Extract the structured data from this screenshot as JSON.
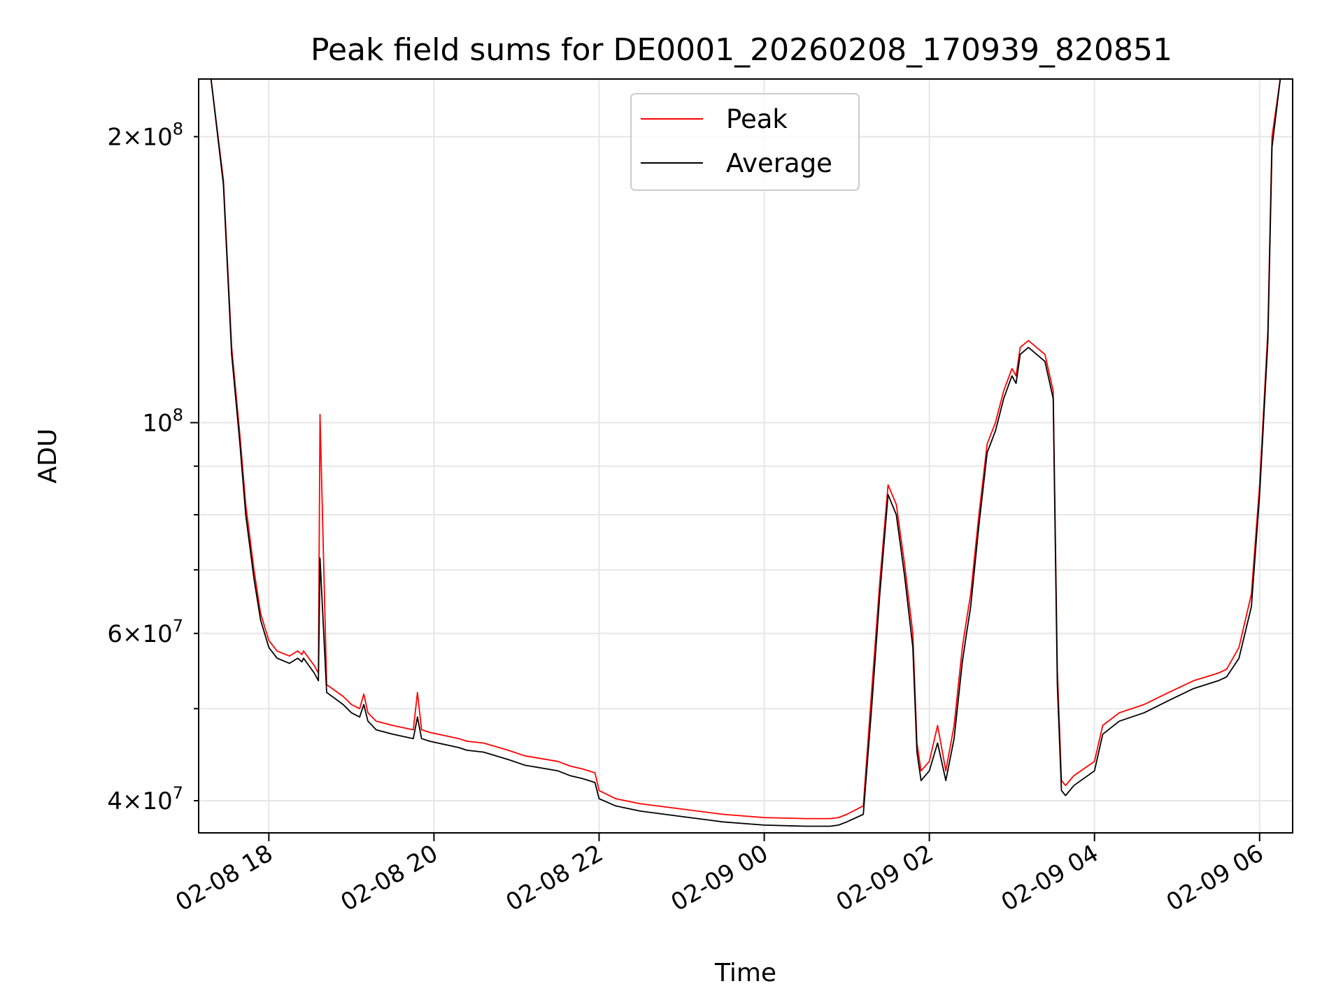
{
  "chart_data": {
    "type": "line",
    "title": "Peak field sums for DE0001_20260208_170939_820851",
    "xlabel": "Time",
    "ylabel": "ADU",
    "yscale": "log",
    "x_unit": "hours since 2026-02-08 00:00",
    "xlim": [
      17.15,
      30.4
    ],
    "ylim": [
      37000000,
      230000000
    ],
    "grid": true,
    "legend": {
      "position": "top-center",
      "entries": [
        "Peak",
        "Average"
      ]
    },
    "x_ticks": [
      {
        "value": 18,
        "label": "02-08 18"
      },
      {
        "value": 20,
        "label": "02-08 20"
      },
      {
        "value": 22,
        "label": "02-08 22"
      },
      {
        "value": 24,
        "label": "02-09 00"
      },
      {
        "value": 26,
        "label": "02-09 02"
      },
      {
        "value": 28,
        "label": "02-09 04"
      },
      {
        "value": 30,
        "label": "02-09 06"
      }
    ],
    "y_major_ticks": [
      {
        "value": 100000000,
        "base": "10",
        "exp": "8",
        "mult": ""
      }
    ],
    "y_minor_labeled_ticks": [
      {
        "value": 40000000,
        "base": "10",
        "exp": "7",
        "mult": "4"
      },
      {
        "value": 60000000,
        "base": "10",
        "exp": "7",
        "mult": "6"
      },
      {
        "value": 200000000,
        "base": "10",
        "exp": "8",
        "mult": "2"
      }
    ],
    "y_minor_unlabeled_ticks": [
      50000000,
      70000000,
      80000000,
      90000000
    ],
    "series": [
      {
        "name": "Peak",
        "color": "#ff0000",
        "x": [
          17.15,
          17.3,
          17.45,
          17.55,
          17.65,
          17.72,
          17.82,
          17.9,
          18.0,
          18.1,
          18.25,
          18.35,
          18.4,
          18.42,
          18.55,
          18.6,
          18.62,
          18.7,
          18.9,
          19.0,
          19.1,
          19.15,
          19.2,
          19.25,
          19.3,
          19.5,
          19.75,
          19.8,
          19.85,
          19.95,
          20.15,
          20.3,
          20.4,
          20.6,
          20.9,
          21.1,
          21.5,
          21.65,
          21.8,
          21.95,
          22.0,
          22.2,
          22.5,
          23.0,
          23.5,
          24.0,
          24.5,
          24.8,
          24.9,
          25.0,
          25.2,
          25.3,
          25.4,
          25.5,
          25.6,
          25.7,
          25.8,
          25.85,
          25.9,
          26.0,
          26.1,
          26.2,
          26.3,
          26.4,
          26.45,
          26.5,
          26.6,
          26.7,
          26.8,
          26.9,
          27.0,
          27.05,
          27.1,
          27.2,
          27.4,
          27.5,
          27.55,
          27.6,
          27.65,
          27.75,
          28.0,
          28.1,
          28.3,
          28.6,
          28.9,
          29.2,
          29.5,
          29.6,
          29.75,
          29.9,
          30.0,
          30.1,
          30.15,
          30.25,
          30.4
        ],
        "y": [
          230000000,
          230000000,
          180000000,
          120000000,
          97000000,
          82000000,
          70000000,
          63000000,
          59000000,
          57500000,
          56800000,
          57500000,
          57000000,
          57500000,
          55500000,
          54500000,
          102000000,
          53000000,
          51500000,
          50500000,
          50000000,
          51800000,
          49500000,
          49000000,
          48500000,
          48000000,
          47500000,
          52000000,
          47500000,
          47200000,
          46800000,
          46500000,
          46200000,
          46000000,
          45200000,
          44600000,
          44000000,
          43500000,
          43200000,
          42800000,
          41000000,
          40200000,
          39700000,
          39200000,
          38700000,
          38400000,
          38300000,
          38300000,
          38400000,
          38700000,
          39500000,
          52000000,
          68000000,
          86000000,
          82000000,
          71000000,
          60000000,
          46000000,
          43000000,
          44000000,
          48000000,
          43000000,
          48000000,
          58000000,
          62000000,
          66000000,
          80000000,
          95000000,
          100000000,
          108000000,
          114000000,
          112000000,
          120000000,
          122000000,
          118000000,
          108000000,
          55000000,
          42000000,
          41500000,
          42500000,
          44000000,
          48000000,
          49500000,
          50500000,
          52000000,
          53500000,
          54500000,
          55000000,
          58000000,
          66000000,
          86000000,
          125000000,
          200000000,
          230000000,
          230000000
        ]
      },
      {
        "name": "Average",
        "color": "#000000",
        "x": [
          17.15,
          17.3,
          17.45,
          17.55,
          17.65,
          17.72,
          17.82,
          17.9,
          18.0,
          18.1,
          18.25,
          18.35,
          18.4,
          18.42,
          18.55,
          18.6,
          18.62,
          18.7,
          18.9,
          19.0,
          19.1,
          19.15,
          19.2,
          19.25,
          19.3,
          19.5,
          19.75,
          19.8,
          19.85,
          19.95,
          20.15,
          20.3,
          20.4,
          20.6,
          20.9,
          21.1,
          21.5,
          21.65,
          21.8,
          21.95,
          22.0,
          22.2,
          22.5,
          23.0,
          23.5,
          24.0,
          24.5,
          24.8,
          24.9,
          25.0,
          25.2,
          25.3,
          25.4,
          25.5,
          25.6,
          25.7,
          25.8,
          25.85,
          25.9,
          26.0,
          26.1,
          26.2,
          26.3,
          26.4,
          26.45,
          26.5,
          26.6,
          26.7,
          26.8,
          26.9,
          27.0,
          27.05,
          27.1,
          27.2,
          27.4,
          27.5,
          27.55,
          27.6,
          27.65,
          27.75,
          28.0,
          28.1,
          28.3,
          28.6,
          28.9,
          29.2,
          29.5,
          29.6,
          29.75,
          29.9,
          30.0,
          30.1,
          30.15,
          30.25,
          30.4
        ],
        "y": [
          230000000,
          230000000,
          178000000,
          118000000,
          95000000,
          80000000,
          68500000,
          62000000,
          58000000,
          56500000,
          55800000,
          56500000,
          56000000,
          56500000,
          54500000,
          53500000,
          72000000,
          52000000,
          50500000,
          49500000,
          49000000,
          50500000,
          48500000,
          48000000,
          47500000,
          47000000,
          46500000,
          49000000,
          46500000,
          46200000,
          45800000,
          45500000,
          45200000,
          45000000,
          44200000,
          43600000,
          43000000,
          42500000,
          42200000,
          41800000,
          40200000,
          39500000,
          39000000,
          38500000,
          38000000,
          37700000,
          37600000,
          37600000,
          37700000,
          38000000,
          38700000,
          50000000,
          66000000,
          84000000,
          80000000,
          69000000,
          58000000,
          45000000,
          42000000,
          43000000,
          46000000,
          42000000,
          46500000,
          56000000,
          60000000,
          64000000,
          78000000,
          93000000,
          98000000,
          106000000,
          112000000,
          110000000,
          118000000,
          120000000,
          116000000,
          106000000,
          53000000,
          41000000,
          40500000,
          41500000,
          43000000,
          47000000,
          48500000,
          49500000,
          51000000,
          52500000,
          53500000,
          54000000,
          56500000,
          64000000,
          84000000,
          122000000,
          195000000,
          230000000,
          230000000
        ]
      }
    ]
  }
}
